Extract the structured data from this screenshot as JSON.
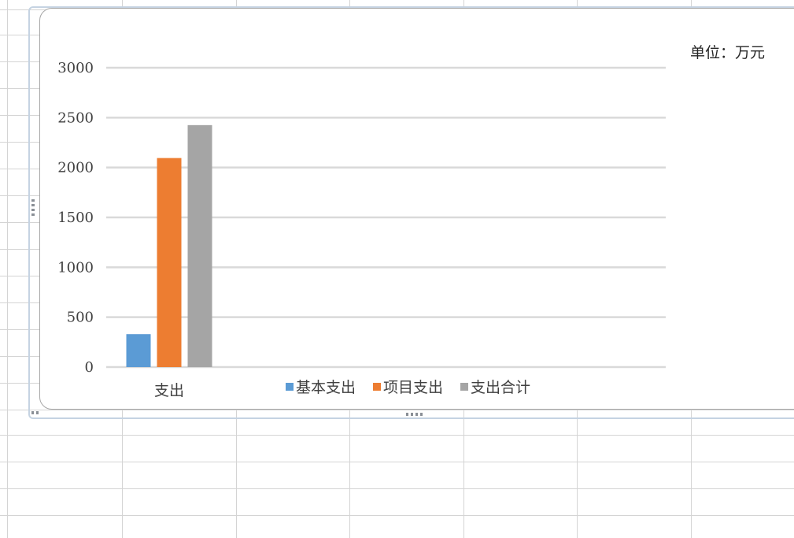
{
  "unit_label": "单位：万元",
  "chart_data": {
    "type": "bar",
    "categories": [
      "支出"
    ],
    "series": [
      {
        "name": "基本支出",
        "values": [
          330
        ],
        "color": "#5b9bd5"
      },
      {
        "name": "项目支出",
        "values": [
          2095
        ],
        "color": "#ed7d31"
      },
      {
        "name": "支出合计",
        "values": [
          2425
        ],
        "color": "#a5a5a5"
      }
    ],
    "ylim": [
      0,
      3000
    ],
    "yticks": [
      0,
      500,
      1000,
      1500,
      2000,
      2500,
      3000
    ],
    "grid": true,
    "legend_position": "bottom",
    "title": "",
    "xlabel": "",
    "ylabel": "单位：万元"
  }
}
